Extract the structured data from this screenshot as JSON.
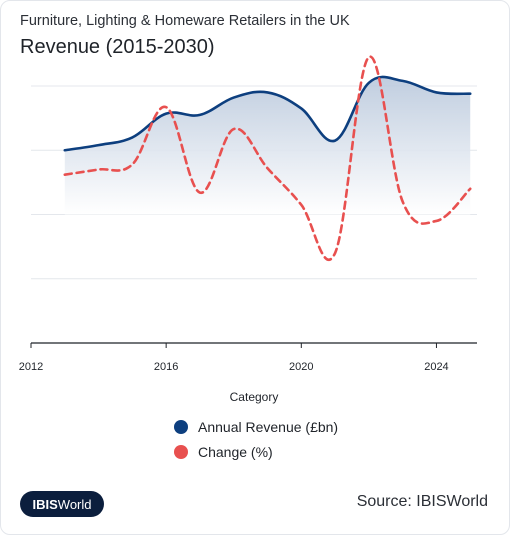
{
  "header": {
    "subtitle": "Furniture, Lighting & Homeware Retailers in the UK",
    "title": "Revenue (2015-2030)"
  },
  "chart_data": {
    "type": "line",
    "x": [
      2013,
      2014,
      2015,
      2016,
      2017,
      2018,
      2019,
      2020,
      2021,
      2022,
      2023,
      2024,
      2025
    ],
    "xticks": [
      "2012",
      "2016",
      "2020",
      "2024"
    ],
    "xlabel": "Category",
    "xlim": [
      2012,
      2025.2
    ],
    "grid": true,
    "legend_position": "bottom",
    "series": [
      {
        "name": "Annual Revenue (£bn)",
        "color": "#0d3f7f",
        "style": "solid-area",
        "values": [
          1.0,
          0.92,
          0.8,
          0.43,
          0.45,
          0.18,
          0.1,
          0.35,
          0.85,
          -0.05,
          -0.08,
          0.1,
          0.12
        ]
      },
      {
        "name": "Change (%)",
        "color": "#e8504f",
        "style": "dashed",
        "values": [
          1.38,
          1.3,
          1.22,
          0.33,
          1.66,
          0.67,
          1.28,
          1.85,
          2.6,
          -0.45,
          1.8,
          2.1,
          1.6
        ]
      }
    ],
    "ylim": [
      0,
      4
    ]
  },
  "legend": {
    "items": [
      {
        "label": "Annual Revenue (£bn)",
        "color": "#0d3f7f"
      },
      {
        "label": "Change (%)",
        "color": "#e8504f"
      }
    ]
  },
  "footer": {
    "logo_bold": "IBIS",
    "logo_rest": "World",
    "source": "Source: IBISWorld"
  }
}
